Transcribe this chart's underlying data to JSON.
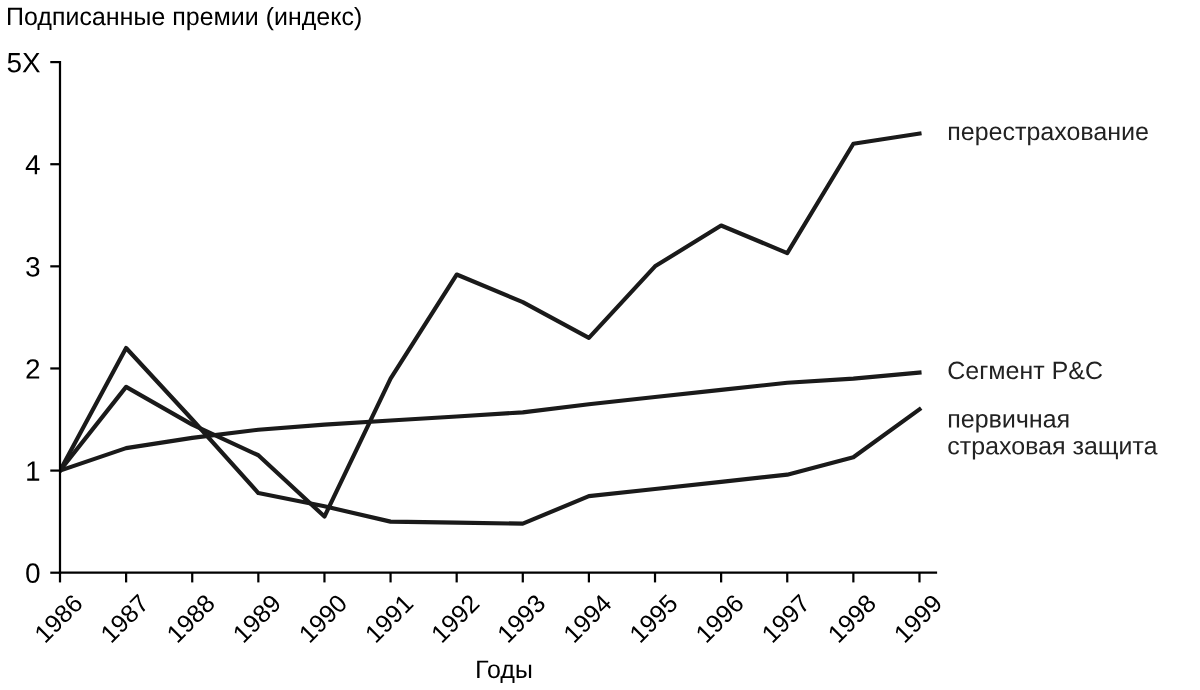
{
  "chart_data": {
    "type": "line",
    "ylabel": "Подписанные премии (индекс)",
    "xlabel": "Годы",
    "categories": [
      "1986",
      "1987",
      "1988",
      "1989",
      "1990",
      "1991",
      "1992",
      "1993",
      "1994",
      "1995",
      "1996",
      "1997",
      "1998",
      "1999"
    ],
    "series": [
      {
        "name": "перестрахование",
        "color": "#1a1a1a",
        "values": [
          1,
          1.82,
          1.45,
          1.15,
          0.55,
          1.9,
          2.92,
          2.65,
          2.3,
          3.0,
          3.4,
          3.13,
          4.2,
          4.3
        ]
      },
      {
        "name": "Сегмент P&C",
        "color": "#1a1a1a",
        "values": [
          1,
          1.22,
          1.32,
          1.4,
          1.45,
          1.49,
          1.53,
          1.57,
          1.65,
          1.72,
          1.79,
          1.86,
          1.9,
          1.96
        ]
      },
      {
        "name": "первичная\nстраховая защита",
        "color": "#1a1a1a",
        "values": [
          1,
          2.2,
          1.5,
          0.78,
          0.65,
          0.5,
          0.49,
          0.48,
          0.75,
          0.82,
          0.89,
          0.96,
          1.13,
          1.6
        ]
      }
    ],
    "ylim": [
      0,
      5
    ],
    "yticks": [
      0,
      1,
      2,
      3,
      4,
      {
        "value": 5,
        "label": "5X"
      }
    ],
    "grid": false,
    "legend": false,
    "marker": "none",
    "line_style": "solid"
  }
}
